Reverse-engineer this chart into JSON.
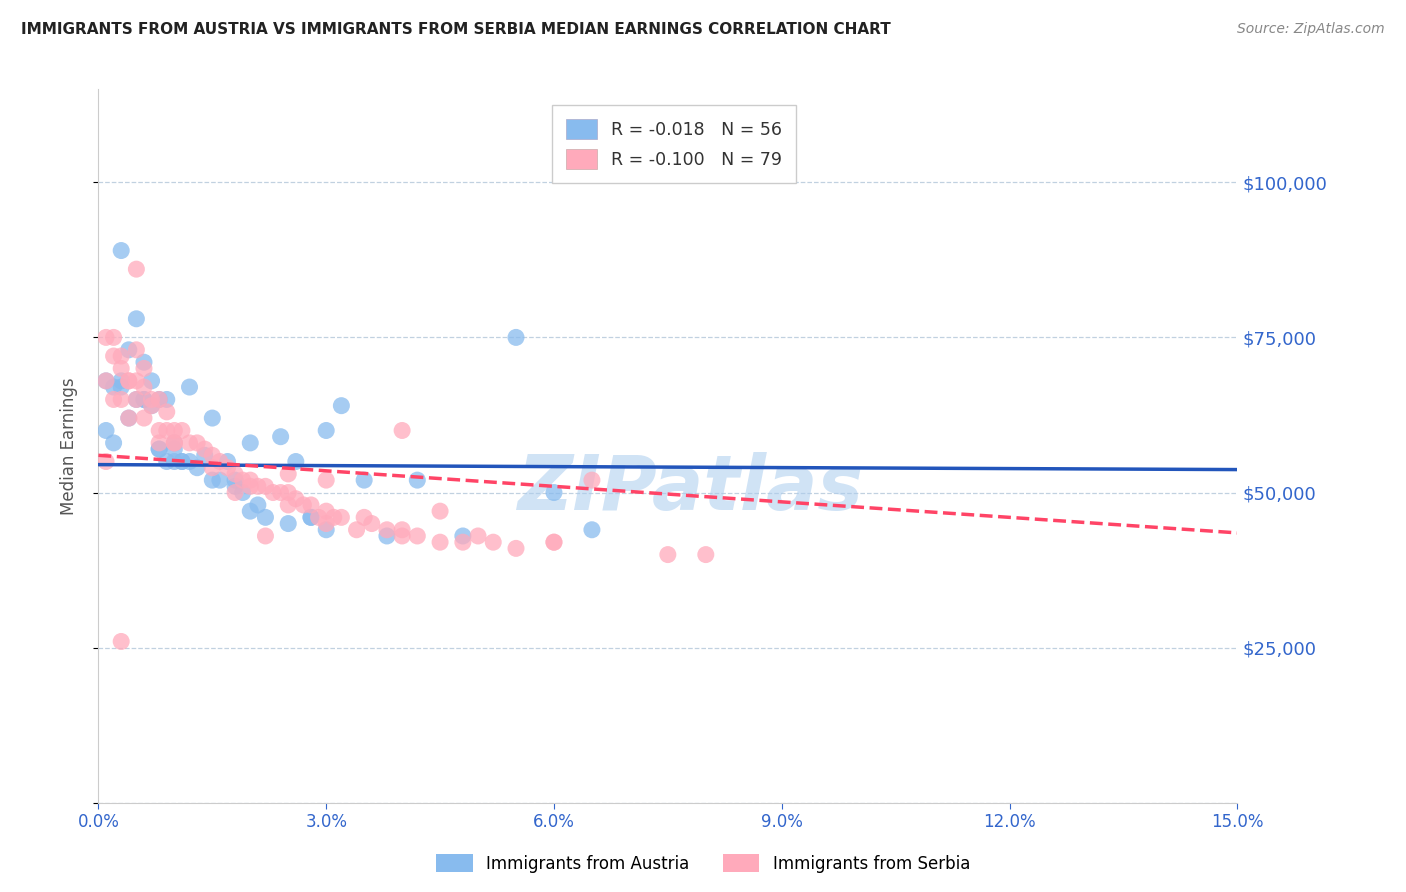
{
  "title": "IMMIGRANTS FROM AUSTRIA VS IMMIGRANTS FROM SERBIA MEDIAN EARNINGS CORRELATION CHART",
  "source_text": "Source: ZipAtlas.com",
  "ylabel": "Median Earnings",
  "xlim": [
    0.0,
    0.15
  ],
  "ylim": [
    0,
    115000
  ],
  "yticks": [
    0,
    25000,
    50000,
    75000,
    100000
  ],
  "ytick_labels": [
    "",
    "$25,000",
    "$50,000",
    "$75,000",
    "$100,000"
  ],
  "xtick_positions": [
    0.0,
    0.03,
    0.06,
    0.09,
    0.12,
    0.15
  ],
  "xtick_labels": [
    "0.0%",
    "3.0%",
    "6.0%",
    "9.0%",
    "12.0%",
    "15.0%"
  ],
  "austria_R": -0.018,
  "austria_N": 56,
  "serbia_R": -0.1,
  "serbia_N": 79,
  "austria_color": "#88BBEE",
  "serbia_color": "#FFAABB",
  "austria_line_color": "#2255BB",
  "serbia_line_color": "#FF4466",
  "background_color": "#FFFFFF",
  "grid_color": "#BBCCDD",
  "title_color": "#222222",
  "axis_label_color": "#555555",
  "ytick_label_color": "#3366CC",
  "xtick_label_color": "#3366CC",
  "watermark_text": "ZIPatlas",
  "watermark_color": "#AACCEE",
  "austria_x": [
    0.001,
    0.001,
    0.002,
    0.002,
    0.003,
    0.003,
    0.004,
    0.004,
    0.005,
    0.005,
    0.006,
    0.006,
    0.007,
    0.007,
    0.008,
    0.008,
    0.009,
    0.009,
    0.01,
    0.01,
    0.011,
    0.011,
    0.012,
    0.013,
    0.014,
    0.015,
    0.016,
    0.017,
    0.018,
    0.019,
    0.02,
    0.021,
    0.022,
    0.024,
    0.026,
    0.028,
    0.03,
    0.032,
    0.035,
    0.038,
    0.042,
    0.048,
    0.03,
    0.055,
    0.06,
    0.065,
    0.028,
    0.02,
    0.015,
    0.01,
    0.008,
    0.006,
    0.025,
    0.018,
    0.012,
    0.003
  ],
  "austria_y": [
    60000,
    68000,
    58000,
    67000,
    89000,
    68000,
    73000,
    62000,
    78000,
    65000,
    71000,
    65000,
    68000,
    64000,
    65000,
    57000,
    65000,
    55000,
    58000,
    57000,
    55000,
    55000,
    67000,
    54000,
    56000,
    62000,
    52000,
    55000,
    51000,
    50000,
    58000,
    48000,
    46000,
    59000,
    55000,
    46000,
    60000,
    64000,
    52000,
    43000,
    52000,
    43000,
    44000,
    75000,
    50000,
    44000,
    46000,
    47000,
    52000,
    55000,
    57000,
    65000,
    45000,
    52000,
    55000,
    67000
  ],
  "serbia_x": [
    0.001,
    0.001,
    0.001,
    0.002,
    0.002,
    0.002,
    0.003,
    0.003,
    0.003,
    0.004,
    0.004,
    0.004,
    0.005,
    0.005,
    0.005,
    0.006,
    0.006,
    0.006,
    0.007,
    0.007,
    0.008,
    0.008,
    0.009,
    0.009,
    0.01,
    0.01,
    0.011,
    0.012,
    0.013,
    0.014,
    0.015,
    0.016,
    0.017,
    0.018,
    0.019,
    0.02,
    0.021,
    0.022,
    0.023,
    0.024,
    0.025,
    0.026,
    0.027,
    0.028,
    0.029,
    0.03,
    0.031,
    0.032,
    0.034,
    0.036,
    0.038,
    0.04,
    0.042,
    0.045,
    0.048,
    0.052,
    0.03,
    0.025,
    0.02,
    0.015,
    0.035,
    0.04,
    0.04,
    0.06,
    0.065,
    0.075,
    0.08,
    0.03,
    0.018,
    0.022,
    0.06,
    0.05,
    0.045,
    0.055,
    0.01,
    0.025,
    0.005,
    0.008,
    0.003
  ],
  "serbia_y": [
    55000,
    68000,
    75000,
    65000,
    72000,
    75000,
    65000,
    70000,
    72000,
    62000,
    68000,
    68000,
    68000,
    65000,
    73000,
    62000,
    67000,
    70000,
    65000,
    64000,
    60000,
    65000,
    60000,
    63000,
    58000,
    60000,
    60000,
    58000,
    58000,
    57000,
    56000,
    55000,
    54000,
    53000,
    52000,
    52000,
    51000,
    51000,
    50000,
    50000,
    50000,
    49000,
    48000,
    48000,
    46000,
    47000,
    46000,
    46000,
    44000,
    45000,
    44000,
    43000,
    43000,
    47000,
    42000,
    42000,
    52000,
    53000,
    51000,
    54000,
    46000,
    44000,
    60000,
    42000,
    52000,
    40000,
    40000,
    45000,
    50000,
    43000,
    42000,
    43000,
    42000,
    41000,
    58000,
    48000,
    86000,
    58000,
    26000
  ],
  "austria_trend_x": [
    0.0,
    0.15
  ],
  "austria_trend_y": [
    54500,
    53700
  ],
  "serbia_trend_x": [
    0.0,
    0.15
  ],
  "serbia_trend_y": [
    56000,
    43500
  ]
}
